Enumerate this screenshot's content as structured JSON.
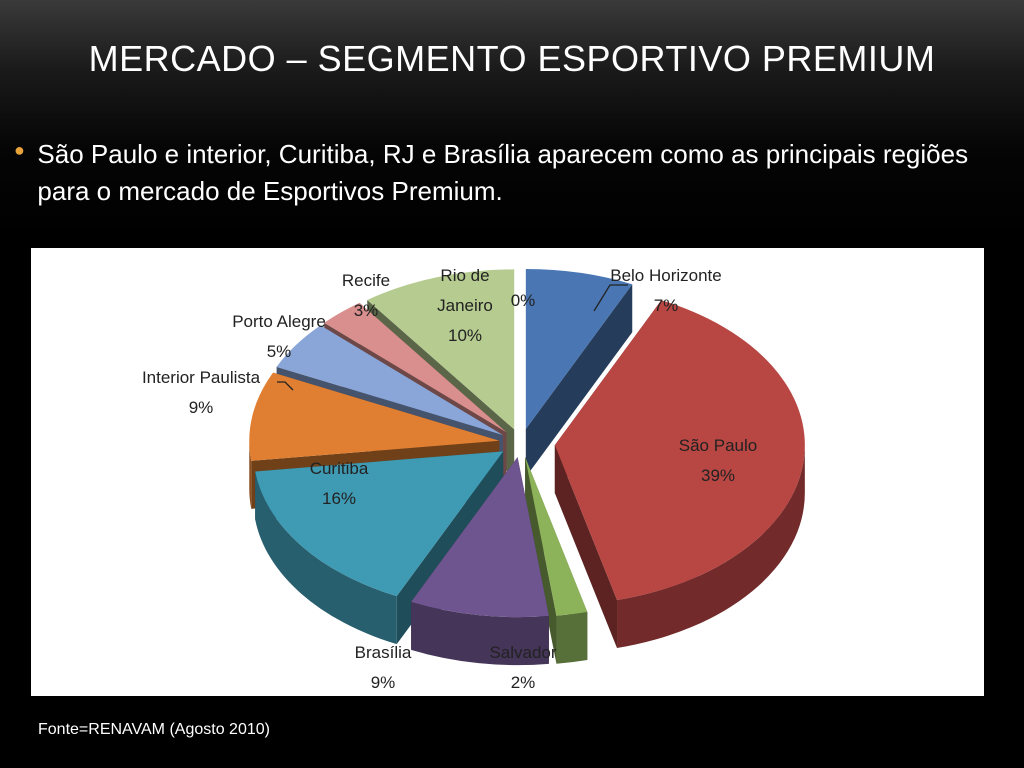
{
  "slide": {
    "title": "MERCADO – SEGMENTO ESPORTIVO PREMIUM",
    "bullet": "São Paulo e interior, Curitiba, RJ e Brasília aparecem como as principais regiões para o mercado de Esportivos Premium.",
    "source": "Fonte=RENAVAM (Agosto 2010)"
  },
  "chart_data": {
    "type": "pie",
    "style": "3d-exploded",
    "categories": [
      "Belo Horizonte",
      "São Paulo",
      "Salvador",
      "Brasília",
      "Curitiba",
      "Interior Paulista",
      "Porto Alegre",
      "Recife",
      "Rio de Janeiro",
      ""
    ],
    "values": [
      7,
      39,
      2,
      9,
      16,
      9,
      5,
      3,
      10,
      0
    ],
    "percent_labels": [
      "7%",
      "39%",
      "2%",
      "9%",
      "16%",
      "9%",
      "5%",
      "3%",
      "10%",
      "0%"
    ],
    "colors": [
      "#4a77b4",
      "#b84643",
      "#8db35a",
      "#6f558f",
      "#3f9ab3",
      "#e07f32",
      "#8aa6d8",
      "#d98f8e",
      "#b5cb8f",
      "#4a77b4"
    ],
    "legend": "none"
  }
}
